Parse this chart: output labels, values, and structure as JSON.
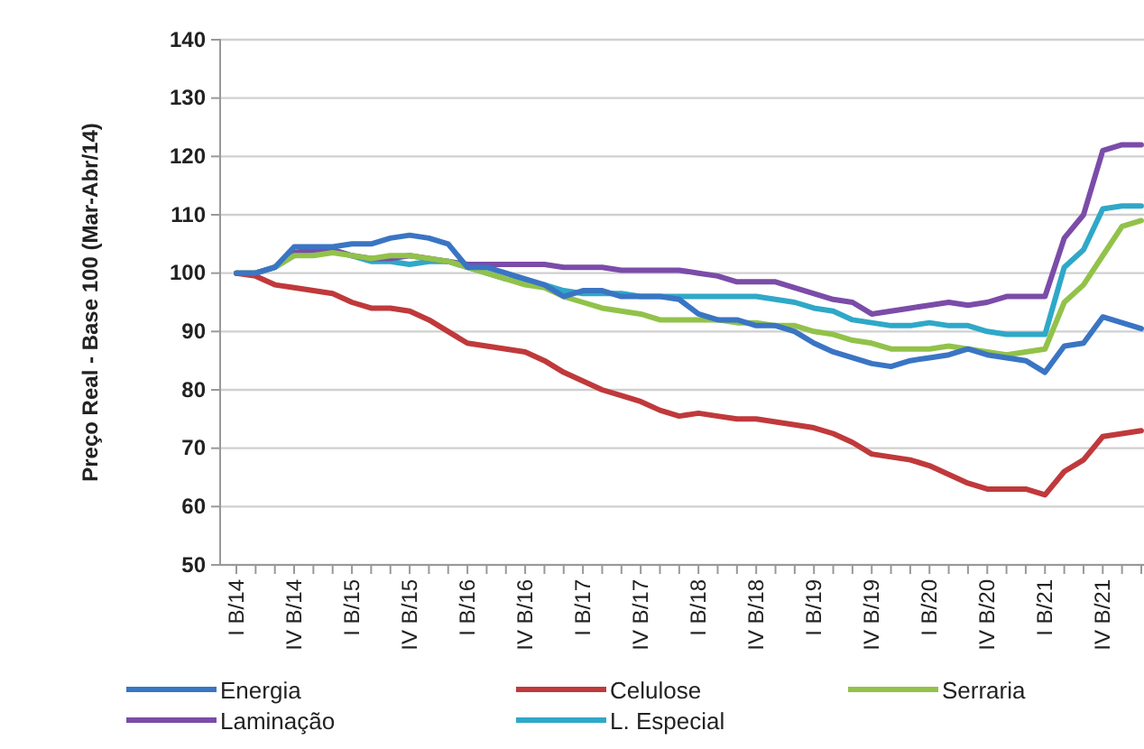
{
  "chart_data": {
    "type": "line",
    "ylabel": "Preço Real - Base 100 (Mar-Abr/14)",
    "categories": [
      "I B/14",
      null,
      null,
      "IV B/14",
      null,
      null,
      "I B/15",
      null,
      null,
      "IV B/15",
      null,
      null,
      "I B/16",
      null,
      null,
      "IV B/16",
      null,
      null,
      "I B/17",
      null,
      null,
      "IV B/17",
      null,
      null,
      "I B/18",
      null,
      null,
      "IV B/18",
      null,
      null,
      "I B/19",
      null,
      null,
      "IV B/19",
      null,
      null,
      "I B/20",
      null,
      null,
      "IV B/20",
      null,
      null,
      "I B/21",
      null,
      null,
      "IV B/21",
      null,
      null
    ],
    "ylim": [
      50,
      140
    ],
    "yticks": [
      50,
      60,
      70,
      80,
      90,
      100,
      110,
      120,
      130,
      140
    ],
    "grid": "y",
    "legend": "bottom",
    "series": [
      {
        "name": "Energia",
        "color": "#3a75c4",
        "values": [
          100,
          100,
          101,
          104.5,
          104.5,
          104.5,
          105,
          105,
          106,
          106.5,
          106,
          105,
          101,
          101,
          100,
          99,
          98,
          96,
          97,
          97,
          96,
          96,
          96,
          95.5,
          93,
          92,
          92,
          91,
          91,
          90,
          88,
          86.5,
          85.5,
          84.5,
          84,
          85,
          85.5,
          86,
          87,
          86,
          85.5,
          85,
          83,
          87.5,
          88,
          92.5,
          91.5,
          90.5
        ]
      },
      {
        "name": "Celulose",
        "color": "#c0393b",
        "values": [
          100,
          99.5,
          98,
          97.5,
          97,
          96.5,
          95,
          94,
          94,
          93.5,
          92,
          90,
          88,
          87.5,
          87,
          86.5,
          85,
          83,
          81.5,
          80,
          79,
          78,
          76.5,
          75.5,
          76,
          75.5,
          75,
          75,
          74.5,
          74,
          73.5,
          72.5,
          71,
          69,
          68.5,
          68,
          67,
          65.5,
          64,
          63,
          63,
          63,
          62,
          66,
          68,
          72,
          72.5,
          73
        ]
      },
      {
        "name": "Serraria",
        "color": "#92c24a",
        "values": [
          100,
          100,
          101,
          103,
          103,
          103.5,
          103,
          102.5,
          103,
          103,
          102.5,
          102,
          101,
          100,
          99,
          98,
          97.5,
          96,
          95,
          94,
          93.5,
          93,
          92,
          92,
          92,
          92,
          91.5,
          91.5,
          91,
          91,
          90,
          89.5,
          88.5,
          88,
          87,
          87,
          87,
          87.5,
          87,
          86.5,
          86,
          86.5,
          87,
          95,
          98,
          103,
          108,
          109
        ]
      },
      {
        "name": "Laminação",
        "color": "#7b4ca8",
        "values": [
          100,
          100,
          101,
          103.5,
          104,
          104,
          103,
          102.5,
          102.5,
          103,
          102.5,
          102,
          101.5,
          101.5,
          101.5,
          101.5,
          101.5,
          101,
          101,
          101,
          100.5,
          100.5,
          100.5,
          100.5,
          100,
          99.5,
          98.5,
          98.5,
          98.5,
          97.5,
          96.5,
          95.5,
          95,
          93,
          93.5,
          94,
          94.5,
          95,
          94.5,
          95,
          96,
          96,
          96,
          106,
          110,
          121,
          122,
          122
        ]
      },
      {
        "name": "L. Especial",
        "color": "#2fa8c8",
        "values": [
          100,
          100,
          101,
          103,
          103.5,
          104,
          103,
          102,
          102,
          101.5,
          102,
          102,
          101,
          100,
          99,
          98.5,
          98,
          97,
          96.5,
          96.5,
          96.5,
          96,
          96,
          96,
          96,
          96,
          96,
          96,
          95.5,
          95,
          94,
          93.5,
          92,
          91.5,
          91,
          91,
          91.5,
          91,
          91,
          90,
          89.5,
          89.5,
          89.5,
          101,
          104,
          111,
          111.5,
          111.5
        ]
      }
    ]
  }
}
